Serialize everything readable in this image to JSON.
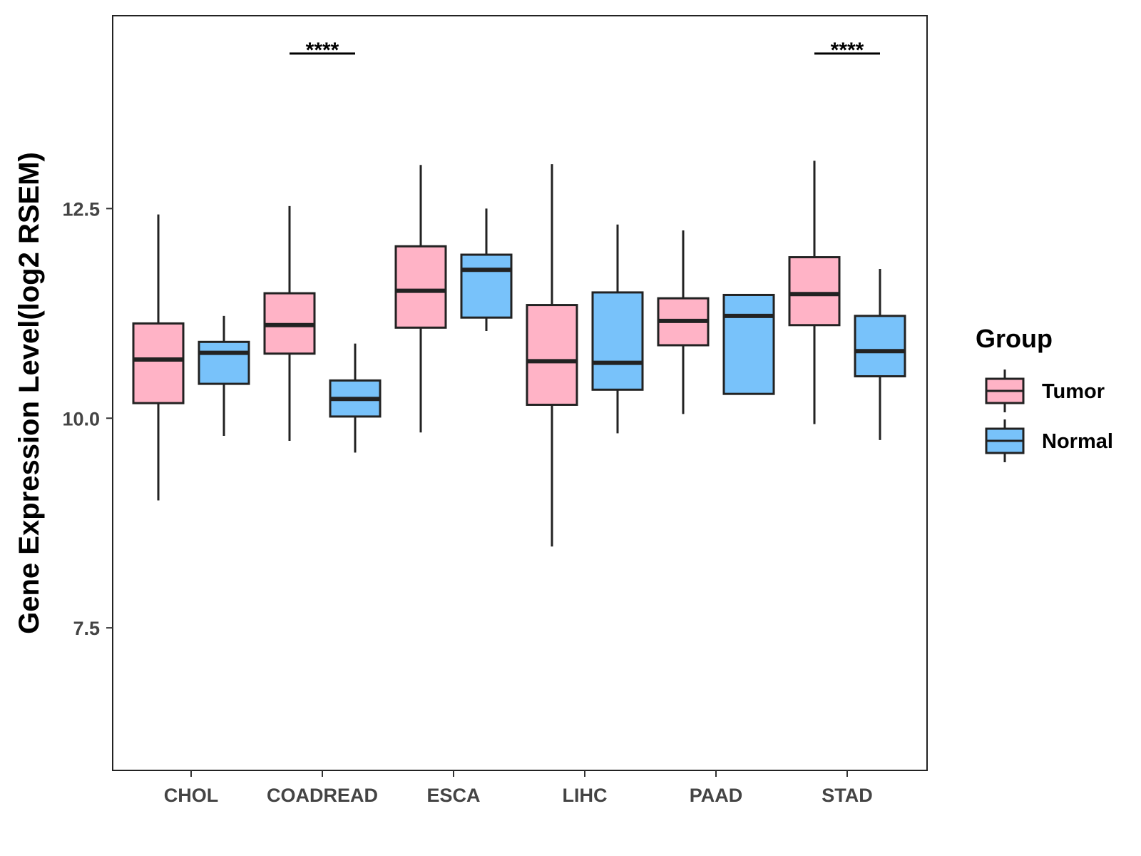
{
  "chart_data": {
    "type": "boxplot",
    "title": "",
    "xlabel": "",
    "ylabel": "Gene Expression Level(log2 RSEM)",
    "ylim": [
      5.8,
      14.8
    ],
    "yticks": [
      "7.5",
      "10.0",
      "12.5"
    ],
    "ytick_values": [
      7.5,
      10.0,
      12.5
    ],
    "categories": [
      "CHOL",
      "COADREAD",
      "ESCA",
      "LIHC",
      "PAAD",
      "STAD"
    ],
    "legend": {
      "title": "Group",
      "position": "right",
      "entries": [
        "Tumor",
        "Normal"
      ]
    },
    "colors": {
      "Tumor": "#ffb3c6",
      "Normal": "#78c2fa",
      "outline": "#222222"
    },
    "series": [
      {
        "name": "Tumor",
        "boxes": [
          {
            "category": "CHOL",
            "whisker_low": 9.02,
            "q1": 10.18,
            "median": 10.7,
            "q3": 11.13,
            "whisker_high": 12.43
          },
          {
            "category": "COADREAD",
            "whisker_low": 9.73,
            "q1": 10.77,
            "median": 11.11,
            "q3": 11.49,
            "whisker_high": 12.53
          },
          {
            "category": "ESCA",
            "whisker_low": 9.83,
            "q1": 11.08,
            "median": 11.52,
            "q3": 12.05,
            "whisker_high": 13.02
          },
          {
            "category": "LIHC",
            "whisker_low": 8.47,
            "q1": 10.16,
            "median": 10.68,
            "q3": 11.35,
            "whisker_high": 13.03
          },
          {
            "category": "PAAD",
            "whisker_low": 10.05,
            "q1": 10.87,
            "median": 11.16,
            "q3": 11.43,
            "whisker_high": 12.24
          },
          {
            "category": "STAD",
            "whisker_low": 9.93,
            "q1": 11.11,
            "median": 11.48,
            "q3": 11.92,
            "whisker_high": 13.07
          }
        ]
      },
      {
        "name": "Normal",
        "boxes": [
          {
            "category": "CHOL",
            "whisker_low": 9.79,
            "q1": 10.41,
            "median": 10.78,
            "q3": 10.91,
            "whisker_high": 11.22
          },
          {
            "category": "COADREAD",
            "whisker_low": 9.59,
            "q1": 10.02,
            "median": 10.23,
            "q3": 10.45,
            "whisker_high": 10.89
          },
          {
            "category": "ESCA",
            "whisker_low": 11.04,
            "q1": 11.2,
            "median": 11.77,
            "q3": 11.95,
            "whisker_high": 12.5
          },
          {
            "category": "LIHC",
            "whisker_low": 9.82,
            "q1": 10.34,
            "median": 10.66,
            "q3": 11.5,
            "whisker_high": 12.31
          },
          {
            "category": "PAAD",
            "whisker_low": 10.29,
            "q1": 10.29,
            "median": 11.22,
            "q3": 11.47,
            "whisker_high": 11.48
          },
          {
            "category": "STAD",
            "whisker_low": 9.74,
            "q1": 10.5,
            "median": 10.8,
            "q3": 11.22,
            "whisker_high": 11.78
          }
        ]
      }
    ],
    "annotations": [
      {
        "category": "COADREAD",
        "text": "****"
      },
      {
        "category": "STAD",
        "text": "****"
      }
    ]
  }
}
